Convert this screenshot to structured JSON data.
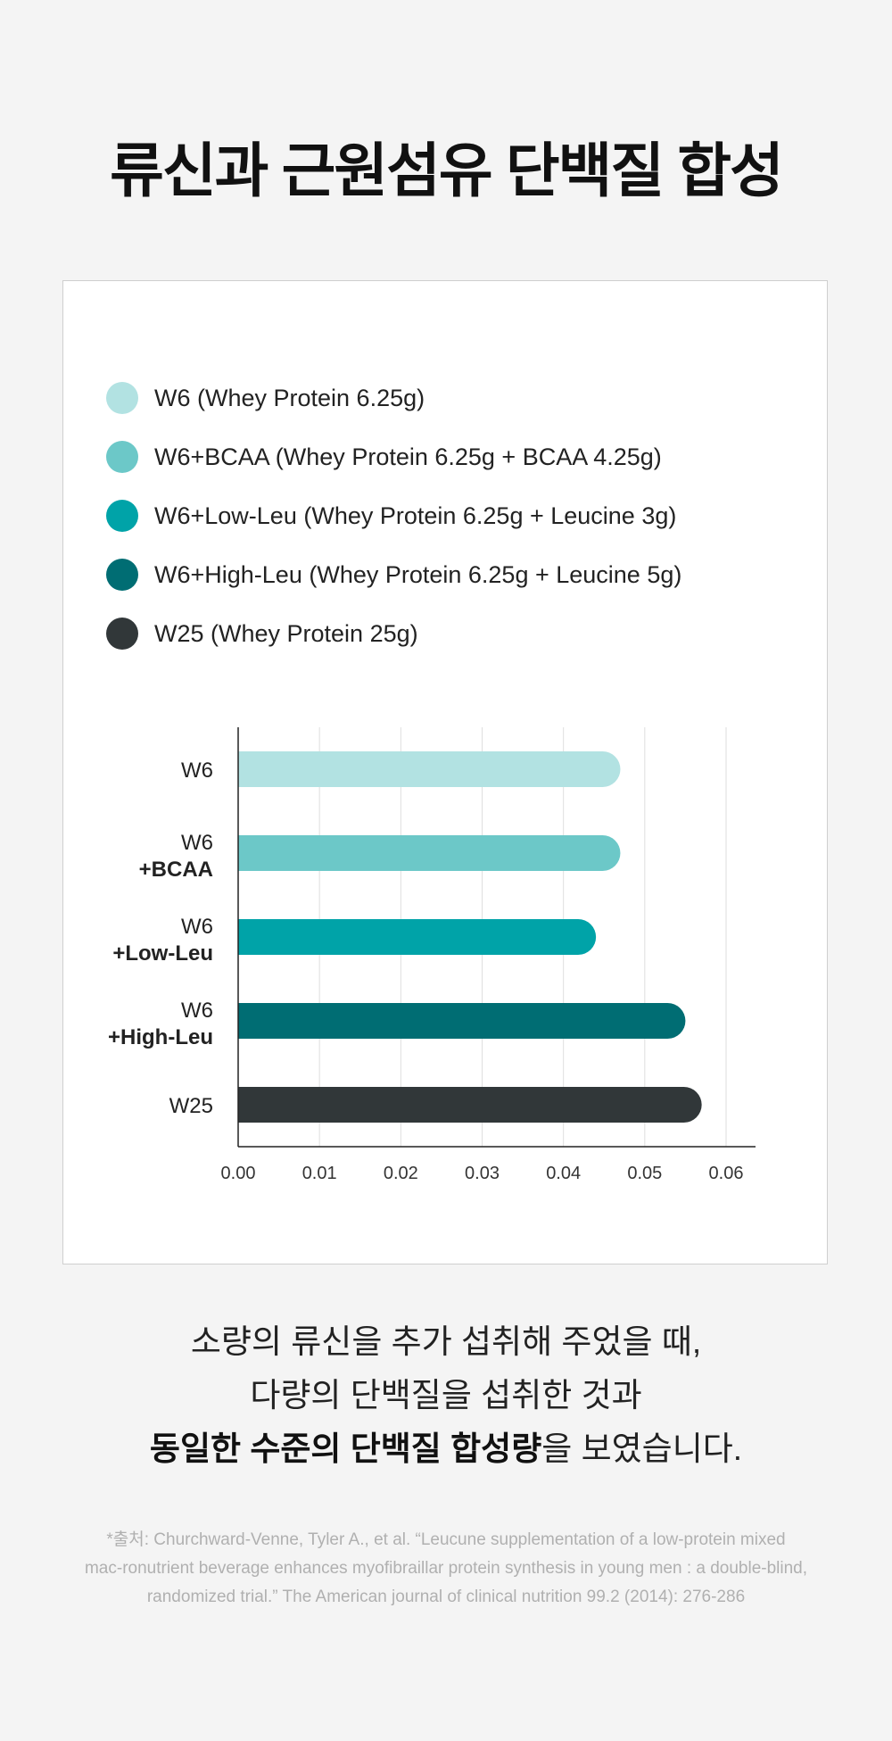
{
  "title": "류신과 근원섬유 단백질 합성",
  "legend": [
    {
      "label": "W6 (Whey Protein 6.25g)",
      "color": "#b2e2e2",
      "icon": "circle-swatch"
    },
    {
      "label": "W6+BCAA (Whey Protein 6.25g + BCAA 4.25g)",
      "color": "#6cc8c8",
      "icon": "circle-swatch"
    },
    {
      "label": "W6+Low-Leu (Whey Protein 6.25g + Leucine 3g)",
      "color": "#00a3a8",
      "icon": "circle-swatch"
    },
    {
      "label": "W6+High-Leu (Whey Protein 6.25g + Leucine 5g)",
      "color": "#006d73",
      "icon": "circle-swatch"
    },
    {
      "label": "W25 (Whey Protein 25g)",
      "color": "#313739",
      "icon": "circle-swatch"
    }
  ],
  "chart_data": {
    "type": "bar",
    "orientation": "horizontal",
    "categories": [
      {
        "line1": "W6",
        "line2": ""
      },
      {
        "line1": "W6",
        "line2": "+BCAA"
      },
      {
        "line1": "W6",
        "line2": "+Low-Leu"
      },
      {
        "line1": "W6",
        "line2": "+High-Leu"
      },
      {
        "line1": "W25",
        "line2": ""
      }
    ],
    "values": [
      0.047,
      0.047,
      0.044,
      0.055,
      0.057
    ],
    "colors": [
      "#b2e2e2",
      "#6cc8c8",
      "#00a3a8",
      "#006d73",
      "#313739"
    ],
    "xlim": [
      0,
      0.06
    ],
    "xticks": [
      "0.00",
      "0.01",
      "0.02",
      "0.03",
      "0.04",
      "0.05",
      "0.06"
    ],
    "grid": true,
    "title": "",
    "xlabel": "",
    "ylabel": ""
  },
  "caption": {
    "line1": "소량의 류신을 추가 섭취해 주었을 때,",
    "line2": "다량의 단백질을 섭취한 것과",
    "line3_bold": "동일한 수준의 단백질 합성량",
    "line3_rest": "을 보였습니다."
  },
  "source": {
    "line1": "*출처: Churchward-Venne, Tyler A., et al. “Leucune supplementation of a low-protein mixed",
    "line2": "mac-ronutrient beverage enhances myofibraillar protein synthesis in young men : a double-blind,",
    "line3": "randomized trial.” The American journal of clinical nutrition 99.2 (2014): 276-286"
  }
}
